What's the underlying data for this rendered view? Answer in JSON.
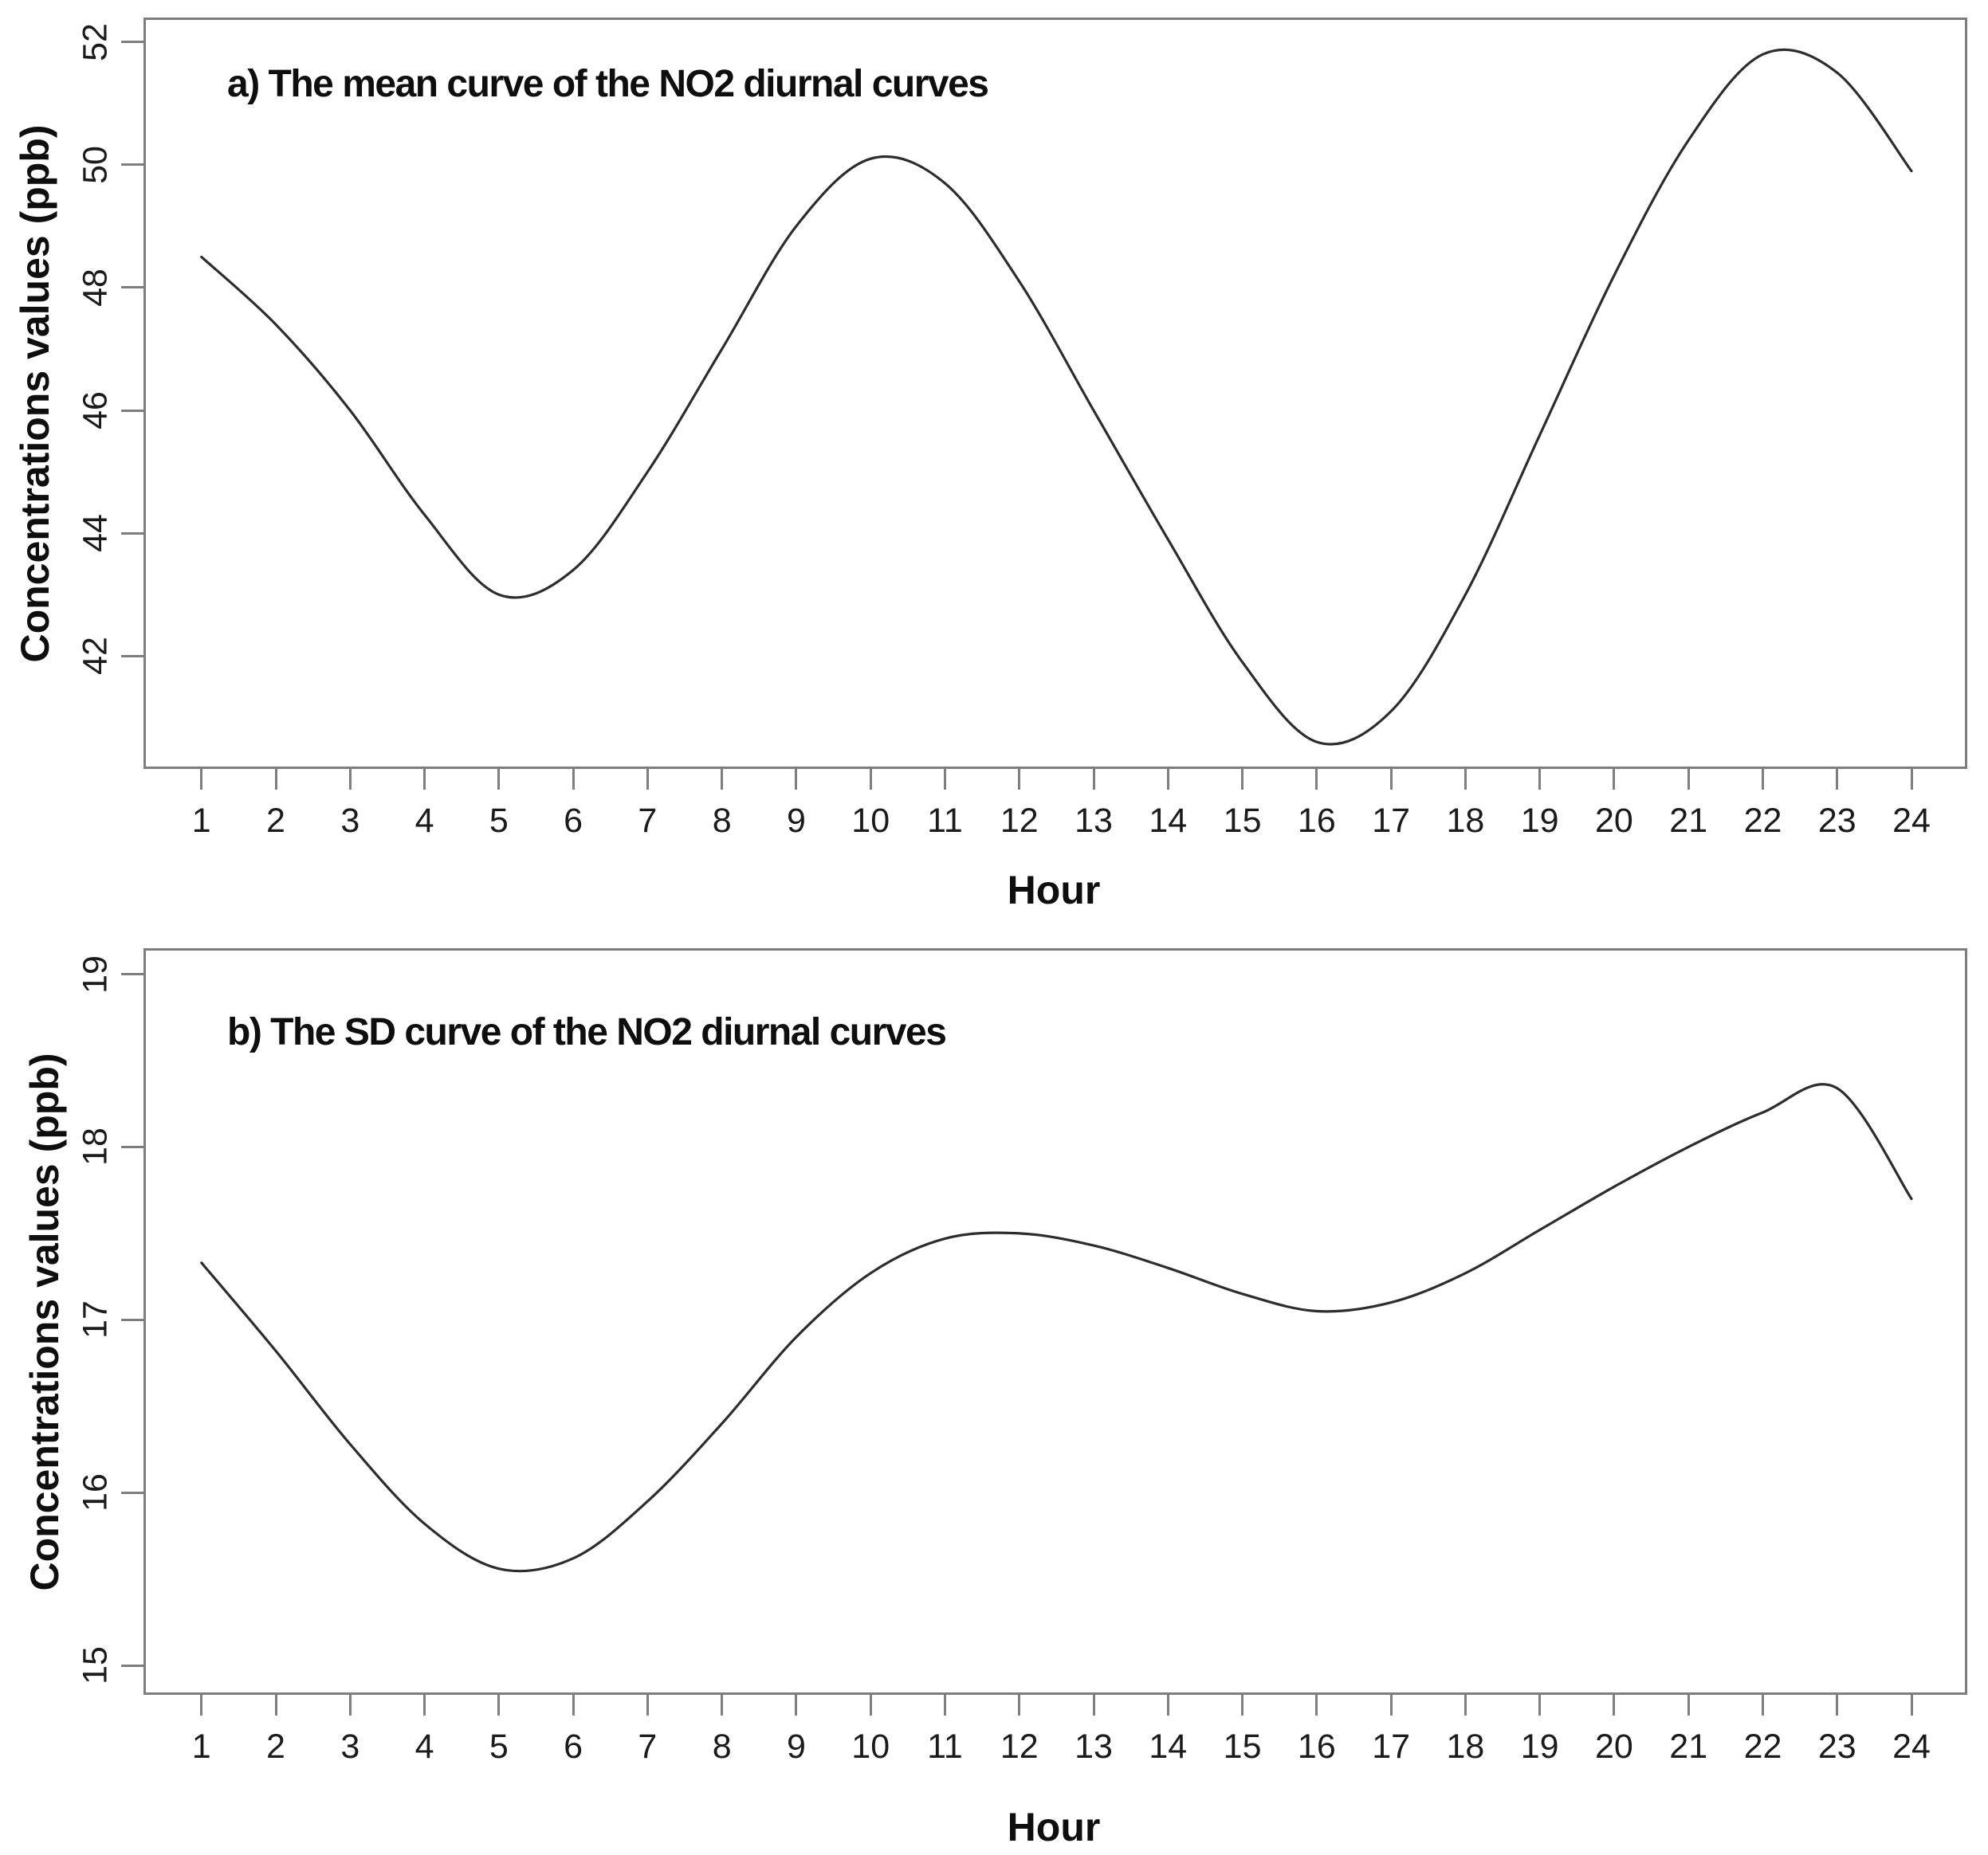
{
  "figure": {
    "background": "#ffffff"
  },
  "colors": {
    "curve": "#2d2d2d",
    "plot_border": "#7e7e7e",
    "tick_mark": "#7e7e7e",
    "tick_text": "#1b1b1b",
    "title_text": "#0e0e0e"
  },
  "chart_data": [
    {
      "type": "line",
      "title": "a) The mean curve of the NO2 diurnal curves",
      "xlabel": "Hour",
      "ylabel": "Concentrations values (ppb)",
      "x_ticks": [
        1,
        2,
        3,
        4,
        5,
        6,
        7,
        8,
        9,
        10,
        11,
        12,
        13,
        14,
        15,
        16,
        17,
        18,
        19,
        20,
        21,
        22,
        23,
        24
      ],
      "y_ticks": [
        42,
        44,
        46,
        48,
        50,
        52
      ],
      "xlim": [
        0.22,
        24.75
      ],
      "ylim": [
        40.16,
        52.4
      ],
      "grid": false,
      "legend": "none",
      "x": [
        1,
        2,
        3,
        4,
        5,
        6,
        7,
        8,
        9,
        10,
        11,
        12,
        13,
        14,
        15,
        16,
        17,
        18,
        19,
        20,
        21,
        22,
        23,
        24
      ],
      "values": [
        48.5,
        47.4,
        46.0,
        44.3,
        43.0,
        43.4,
        45.0,
        47.0,
        49.0,
        50.1,
        49.7,
        48.1,
        46.0,
        43.9,
        41.9,
        40.6,
        41.1,
        43.0,
        45.6,
        48.2,
        50.4,
        51.8,
        51.5,
        49.9
      ]
    },
    {
      "type": "line",
      "title": "b) The SD curve of the NO2 diurnal curves",
      "xlabel": "Hour",
      "ylabel": "Concentrations values (ppb)",
      "x_ticks": [
        1,
        2,
        3,
        4,
        5,
        6,
        7,
        8,
        9,
        10,
        11,
        12,
        13,
        14,
        15,
        16,
        17,
        18,
        19,
        20,
        21,
        22,
        23,
        24
      ],
      "y_ticks": [
        15,
        16,
        17,
        18,
        19
      ],
      "xlim": [
        0.22,
        24.75
      ],
      "ylim": [
        14.83,
        19.15
      ],
      "grid": false,
      "legend": "none",
      "x": [
        1,
        2,
        3,
        4,
        5,
        6,
        7,
        8,
        9,
        10,
        11,
        12,
        13,
        14,
        15,
        16,
        17,
        18,
        19,
        20,
        21,
        22,
        23,
        24
      ],
      "values": [
        17.33,
        16.82,
        16.28,
        15.82,
        15.56,
        15.62,
        15.95,
        16.4,
        16.9,
        17.27,
        17.47,
        17.5,
        17.43,
        17.3,
        17.15,
        17.05,
        17.1,
        17.27,
        17.52,
        17.77,
        18.0,
        18.2,
        18.34,
        17.7
      ]
    }
  ]
}
